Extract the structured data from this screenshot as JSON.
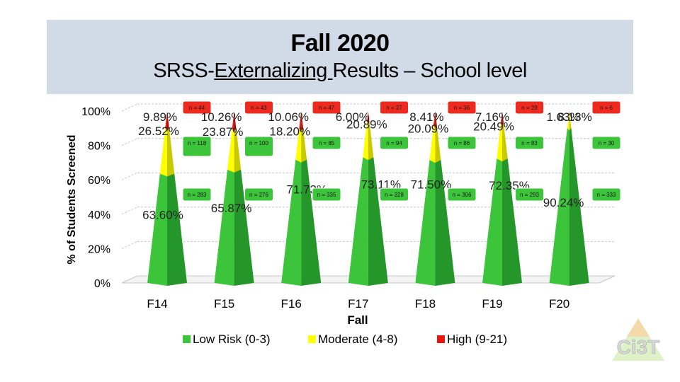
{
  "header": {
    "title": "Fall 2020",
    "subtitle_pre": "SRSS-",
    "subtitle_underlined": "Externalizing ",
    "subtitle_post": "Results – School level"
  },
  "logo": {
    "text": "Ci3T"
  },
  "colors": {
    "low": "#3cc43a",
    "moderate": "#ffff00",
    "high": "#e8160c",
    "badge": "#3cc43a",
    "badge_high": "#ee2a1e",
    "banner": "#d1dbe8"
  },
  "chart_data": {
    "type": "bar",
    "stacked": true,
    "percent": true,
    "categories": [
      "F14",
      "F15",
      "F16",
      "F17",
      "F18",
      "F19",
      "F20"
    ],
    "series": [
      {
        "name": "Low Risk (0-3)",
        "values": [
          63.6,
          65.87,
          71.73,
          73.11,
          71.5,
          72.35,
          90.24
        ],
        "counts": [
          "n = 283",
          "n = 276",
          "n = 335",
          "n = 328",
          "n = 306",
          "n = 293",
          "n = 333"
        ]
      },
      {
        "name": "Moderate (4-8)",
        "values": [
          26.52,
          23.87,
          18.2,
          20.89,
          20.09,
          20.49,
          8.13
        ],
        "counts": [
          "n = 118",
          "n = 100",
          "n = 85",
          "n = 94",
          "n = 86",
          "n = 83",
          "n = 30"
        ]
      },
      {
        "name": "High (9-21)",
        "values": [
          9.89,
          10.26,
          10.06,
          6.0,
          8.41,
          7.16,
          1.63
        ],
        "counts": [
          "n = 44",
          "n = 43",
          "n = 47",
          "n = 27",
          "n = 36",
          "n = 29",
          "n = 6"
        ]
      }
    ],
    "labels": {
      "low": [
        "63.60%",
        "65.87%",
        "71.73%",
        "73.11%",
        "71.50%",
        "72.35%",
        "90.24%"
      ],
      "moderate": [
        "26.52%",
        "23.87%",
        "18.20%",
        "20.89%",
        "20.09%",
        "20.49%",
        "8.13%"
      ],
      "high": [
        "9.89%",
        "10.26%",
        "10.06%",
        "6.00%",
        "8.41%",
        "7.16%",
        "1.63%"
      ]
    },
    "xlabel": "Fall",
    "ylabel": "% of Students Screened",
    "yticks": [
      "0%",
      "20%",
      "40%",
      "60%",
      "80%",
      "100%"
    ],
    "ylim": [
      0,
      100
    ],
    "grid": true,
    "legend_position": "bottom"
  }
}
